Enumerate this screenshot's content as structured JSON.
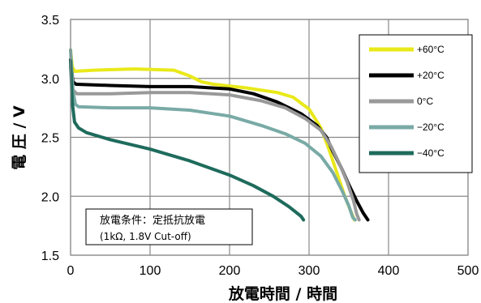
{
  "chart_data": {
    "type": "line",
    "xlabel": "放電時間 / 時間",
    "ylabel": "電 圧 / V",
    "xlim": [
      0,
      500
    ],
    "ylim": [
      1.5,
      3.5
    ],
    "x_ticks": [
      "0",
      "100",
      "200",
      "300",
      "400",
      "500"
    ],
    "y_ticks": [
      "1.5",
      "2.0",
      "2.5",
      "3.0",
      "3.5"
    ],
    "grid": true,
    "legend_position": "top-right",
    "annotation": {
      "line1": "放電条件：定抵抗放電",
      "line2": "(1kΩ, 1.8V Cut-off)"
    },
    "series": [
      {
        "name": "+60°C",
        "color": "#e9e91a",
        "points": [
          [
            0,
            3.24
          ],
          [
            2,
            3.1
          ],
          [
            5,
            3.06
          ],
          [
            30,
            3.07
          ],
          [
            80,
            3.08
          ],
          [
            130,
            3.07
          ],
          [
            150,
            3.02
          ],
          [
            165,
            2.97
          ],
          [
            180,
            2.95
          ],
          [
            220,
            2.92
          ],
          [
            260,
            2.88
          ],
          [
            280,
            2.84
          ],
          [
            300,
            2.74
          ],
          [
            315,
            2.58
          ],
          [
            325,
            2.4
          ],
          [
            335,
            2.2
          ],
          [
            345,
            2.0
          ],
          [
            352,
            1.88
          ],
          [
            357,
            1.8
          ]
        ]
      },
      {
        "name": "+20°C",
        "color": "#000000",
        "points": [
          [
            0,
            3.16
          ],
          [
            3,
            2.97
          ],
          [
            7,
            2.95
          ],
          [
            50,
            2.94
          ],
          [
            100,
            2.93
          ],
          [
            150,
            2.93
          ],
          [
            200,
            2.91
          ],
          [
            230,
            2.87
          ],
          [
            260,
            2.8
          ],
          [
            290,
            2.7
          ],
          [
            310,
            2.6
          ],
          [
            322,
            2.5
          ],
          [
            330,
            2.38
          ],
          [
            340,
            2.25
          ],
          [
            350,
            2.1
          ],
          [
            360,
            1.96
          ],
          [
            368,
            1.86
          ],
          [
            374,
            1.8
          ]
        ]
      },
      {
        "name": "0°C",
        "color": "#999999",
        "points": [
          [
            0,
            3.1
          ],
          [
            3,
            2.9
          ],
          [
            8,
            2.87
          ],
          [
            50,
            2.87
          ],
          [
            100,
            2.88
          ],
          [
            150,
            2.88
          ],
          [
            200,
            2.86
          ],
          [
            240,
            2.81
          ],
          [
            270,
            2.75
          ],
          [
            295,
            2.66
          ],
          [
            315,
            2.56
          ],
          [
            328,
            2.42
          ],
          [
            338,
            2.28
          ],
          [
            348,
            2.12
          ],
          [
            356,
            1.96
          ],
          [
            360,
            1.85
          ],
          [
            363,
            1.8
          ]
        ]
      },
      {
        "name": "−20°C",
        "color": "#79aaa6",
        "points": [
          [
            0,
            3.24
          ],
          [
            3,
            2.9
          ],
          [
            6,
            2.78
          ],
          [
            10,
            2.76
          ],
          [
            50,
            2.75
          ],
          [
            100,
            2.75
          ],
          [
            150,
            2.73
          ],
          [
            200,
            2.68
          ],
          [
            240,
            2.6
          ],
          [
            270,
            2.53
          ],
          [
            295,
            2.45
          ],
          [
            315,
            2.34
          ],
          [
            330,
            2.2
          ],
          [
            342,
            2.04
          ],
          [
            350,
            1.92
          ],
          [
            355,
            1.82
          ],
          [
            358,
            1.8
          ]
        ]
      },
      {
        "name": "−40°C",
        "color": "#1e6b5c",
        "points": [
          [
            0,
            3.15
          ],
          [
            2,
            2.8
          ],
          [
            5,
            2.63
          ],
          [
            10,
            2.58
          ],
          [
            20,
            2.54
          ],
          [
            50,
            2.48
          ],
          [
            100,
            2.4
          ],
          [
            150,
            2.3
          ],
          [
            200,
            2.18
          ],
          [
            230,
            2.09
          ],
          [
            255,
            2.0
          ],
          [
            275,
            1.91
          ],
          [
            290,
            1.83
          ],
          [
            293,
            1.8
          ]
        ]
      }
    ]
  }
}
